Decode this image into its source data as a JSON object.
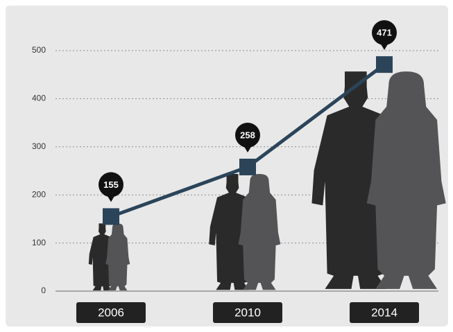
{
  "chart_data": {
    "type": "line",
    "categories": [
      "2006",
      "2010",
      "2014"
    ],
    "values": [
      155,
      258,
      471
    ],
    "color": "#2b4459",
    "ylim": [
      0,
      500
    ],
    "yticks": [
      0,
      100,
      200,
      300,
      400,
      500
    ],
    "grid": true
  }
}
